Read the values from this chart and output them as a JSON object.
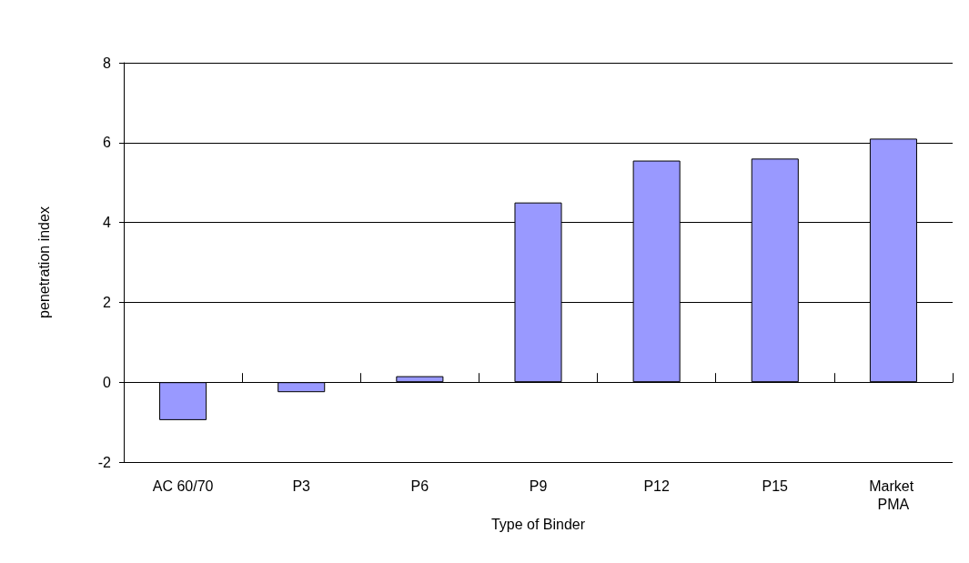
{
  "chart_data": {
    "type": "bar",
    "xlabel": "Type of Binder",
    "ylabel": "penetration index",
    "categories": [
      "AC 60/70",
      "P3",
      "P6",
      "P9",
      "P12",
      "P15",
      "Market PMA"
    ],
    "values": [
      -0.95,
      -0.25,
      0.15,
      4.5,
      5.55,
      5.6,
      6.1
    ],
    "color": "#9999ff",
    "ylim": [
      -2,
      8
    ],
    "yticks": [
      -2,
      0,
      2,
      4,
      6,
      8
    ],
    "grid": "y"
  }
}
